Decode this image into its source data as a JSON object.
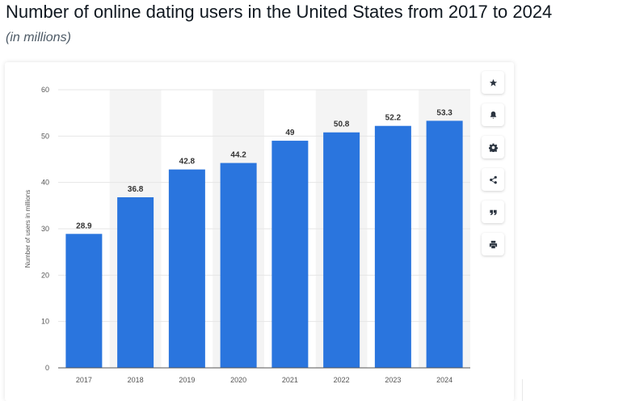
{
  "header": {
    "title": "Number of online dating users in the United States from 2017 to 2024",
    "subtitle": "(in millions)"
  },
  "toolbar": {
    "buttons": [
      {
        "icon": "star-icon"
      },
      {
        "icon": "bell-icon"
      },
      {
        "icon": "gear-icon"
      },
      {
        "icon": "share-icon"
      },
      {
        "icon": "quote-icon"
      },
      {
        "icon": "print-icon"
      }
    ]
  },
  "colors": {
    "bar": "#2a75de",
    "band": "#f4f4f4",
    "grid": "#e6e6e6",
    "axis_text": "#555555",
    "label_text": "#333333"
  },
  "chart_data": {
    "type": "bar",
    "categories": [
      "2017",
      "2018",
      "2019",
      "2020",
      "2021",
      "2022",
      "2023",
      "2024"
    ],
    "values": [
      28.9,
      36.8,
      42.8,
      44.2,
      49,
      50.8,
      52.2,
      53.3
    ],
    "data_labels": [
      "28.9",
      "36.8",
      "42.8",
      "44.2",
      "49",
      "50.8",
      "52.2",
      "53.3"
    ],
    "title": "Number of online dating users in the United States from 2017 to 2024",
    "subtitle": "(in millions)",
    "xlabel": "",
    "ylabel": "Number of users in millions",
    "ylim": [
      0,
      60
    ],
    "yticks": [
      "0",
      "10",
      "20",
      "30",
      "40",
      "50",
      "60"
    ],
    "grid": true,
    "legend": "none"
  }
}
